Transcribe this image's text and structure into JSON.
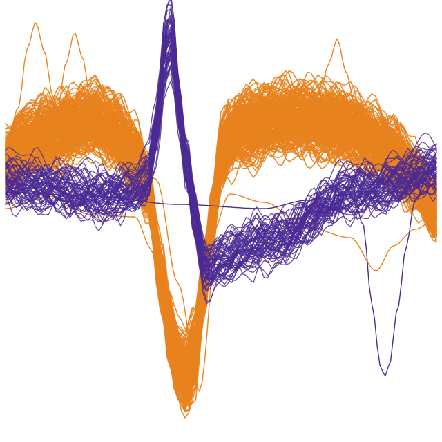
{
  "chart_data": {
    "type": "line",
    "title": "",
    "xlabel": "",
    "ylabel": "",
    "grid": false,
    "legend": "none",
    "xlim": [
      0,
      100
    ],
    "ylim": [
      -100,
      100
    ],
    "colors": {
      "unit_a": "#e8821e",
      "unit_b": "#4b2a94"
    },
    "series": [
      {
        "color": "#e8821e",
        "trace_count": 220,
        "spread": 9,
        "mean_waveform": {
          "x": [
            0,
            5,
            10,
            15,
            20,
            25,
            30,
            33,
            36,
            38,
            40,
            42,
            44,
            46,
            48,
            50,
            52,
            54,
            57,
            60,
            65,
            70,
            75,
            80,
            85,
            90,
            95,
            100
          ],
          "y": [
            29,
            38,
            42,
            46,
            49,
            44,
            32,
            17,
            -25,
            -52,
            -68,
            -74,
            -63,
            -30,
            2,
            32,
            40,
            44,
            46,
            48,
            49,
            50,
            48,
            44,
            39,
            33,
            20,
            5
          ]
        },
        "outliers": [
          {
            "x": [
              0,
              3,
              5,
              7,
              9,
              11,
              12,
              14,
              16,
              18,
              20,
              23,
              26,
              30,
              35,
              40,
              45,
              50,
              55,
              60,
              65,
              70,
              73,
              75,
              77,
              79,
              81,
              85,
              90,
              95,
              100
            ],
            "y": [
              34,
              55,
              83,
              96,
              82,
              60,
              52,
              76,
              91,
              78,
              53,
              45,
              44,
              37,
              20,
              -30,
              -82,
              15,
              54,
              50,
              56,
              52,
              62,
              76,
              88,
              72,
              57,
              49,
              30,
              11,
              -2
            ]
          },
          {
            "x": [
              0,
              10,
              20,
              30,
              34,
              36,
              38,
              40,
              42,
              44,
              46,
              48,
              52,
              60,
              70,
              80,
              86,
              90,
              95,
              100
            ],
            "y": [
              6,
              12,
              3,
              2,
              -14,
              -40,
              -66,
              -86,
              -88,
              -63,
              -31,
              -6,
              13,
              9,
              -3,
              -8,
              -24,
              -12,
              -4,
              1
            ]
          }
        ]
      },
      {
        "color": "#4b2a94",
        "trace_count": 60,
        "spread": 8,
        "mean_waveform": {
          "x": [
            0,
            5,
            10,
            15,
            20,
            25,
            30,
            33,
            35,
            37,
            38,
            39,
            40,
            42,
            44,
            46,
            47,
            50,
            55,
            60,
            65,
            70,
            75,
            80,
            85,
            90,
            95,
            100
          ],
          "y": [
            19,
            17,
            16,
            14,
            12,
            13,
            14,
            19,
            42,
            78,
            89,
            80,
            59,
            28,
            2,
            -19,
            -24,
            -19,
            -14,
            -10,
            -8,
            1,
            9,
            13,
            15,
            18,
            22,
            24
          ]
        },
        "outliers": [
          {
            "x": [
              0,
              20,
              40,
              60,
              70,
              80,
              83,
              85,
              87,
              88,
              89,
              91,
              93,
              95,
              98,
              100
            ],
            "y": [
              14,
              12,
              8,
              6,
              10,
              20,
              -2,
              -40,
              -70,
              -75,
              -70,
              -42,
              -12,
              10,
              22,
              26
            ]
          }
        ]
      }
    ]
  }
}
